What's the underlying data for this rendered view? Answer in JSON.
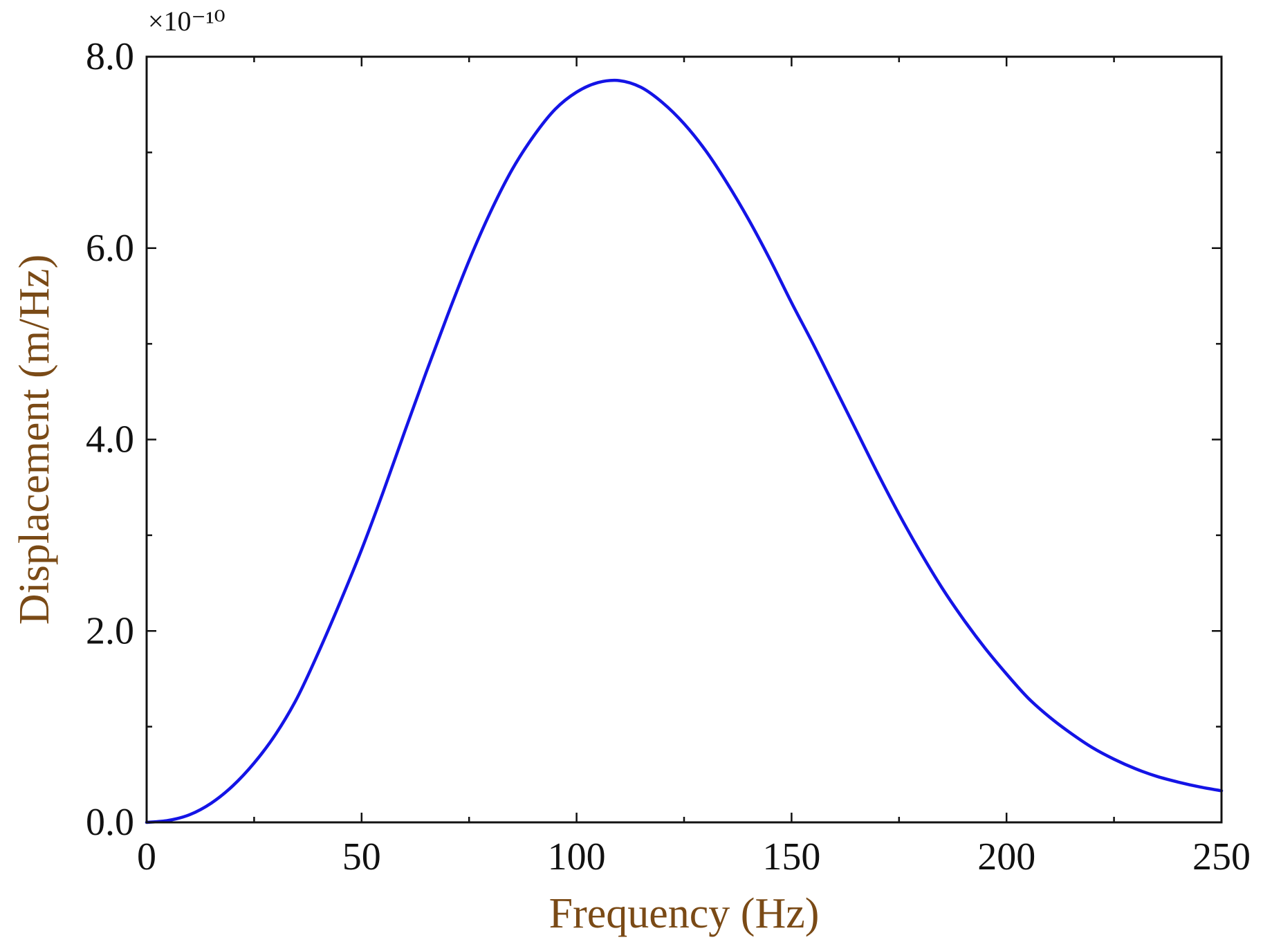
{
  "chart_data": {
    "type": "line",
    "title": "",
    "xlabel": "Frequency (Hz)",
    "ylabel": "Displacement (m/Hz)",
    "y_multiplier_label": "×10⁻¹⁰",
    "xlim": [
      0,
      250
    ],
    "ylim": [
      0,
      8
    ],
    "x_ticks": [
      0,
      50,
      100,
      150,
      200,
      250
    ],
    "x_tick_labels": [
      "0",
      "50",
      "100",
      "150",
      "200",
      "250"
    ],
    "y_ticks": [
      0,
      2,
      4,
      6,
      8
    ],
    "y_tick_labels": [
      "0.0",
      "2.0",
      "4.0",
      "6.0",
      "8.0"
    ],
    "grid": false,
    "colors": {
      "line": "#1414e6",
      "axis_title": "#7a4a16",
      "axes": "#111111"
    },
    "series": [
      {
        "name": "Displacement",
        "x": [
          0,
          5,
          10,
          15,
          20,
          25,
          30,
          35,
          40,
          45,
          50,
          55,
          60,
          65,
          70,
          75,
          80,
          85,
          90,
          95,
          100,
          105,
          110,
          115,
          120,
          125,
          130,
          135,
          140,
          145,
          150,
          155,
          160,
          165,
          170,
          175,
          180,
          185,
          190,
          195,
          200,
          205,
          210,
          215,
          220,
          225,
          230,
          235,
          240,
          245,
          250
        ],
        "y": [
          0.0,
          0.02,
          0.08,
          0.2,
          0.38,
          0.62,
          0.92,
          1.3,
          1.78,
          2.3,
          2.85,
          3.45,
          4.08,
          4.7,
          5.3,
          5.87,
          6.38,
          6.82,
          7.17,
          7.45,
          7.63,
          7.73,
          7.75,
          7.68,
          7.52,
          7.3,
          7.02,
          6.68,
          6.3,
          5.88,
          5.43,
          5.0,
          4.55,
          4.1,
          3.65,
          3.22,
          2.82,
          2.45,
          2.12,
          1.82,
          1.55,
          1.3,
          1.1,
          0.93,
          0.78,
          0.66,
          0.56,
          0.48,
          0.42,
          0.37,
          0.33
        ]
      }
    ]
  }
}
